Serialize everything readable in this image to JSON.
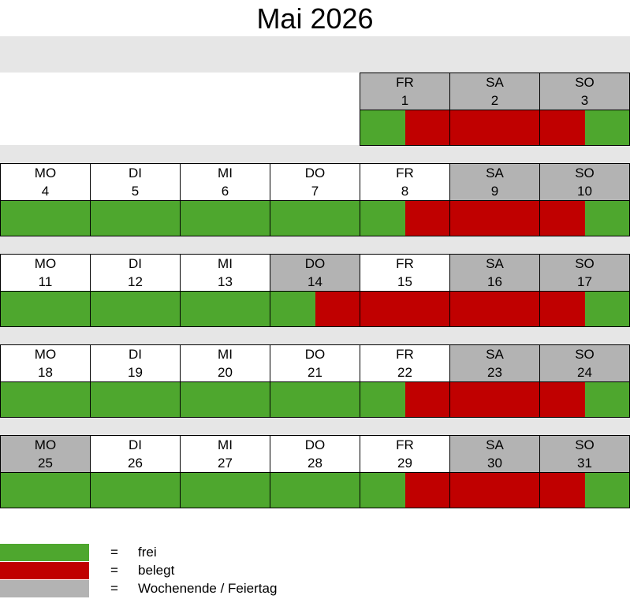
{
  "title": "Mai 2026",
  "colors": {
    "free": "#4ea72e",
    "occupied": "#c00000",
    "weekend": "#b3b3b3",
    "band": "#e6e6e6"
  },
  "weeks": [
    {
      "days": [
        {
          "col": 4,
          "dn": "FR",
          "num": "1",
          "weekend": true,
          "state": "free-occ"
        },
        {
          "col": 5,
          "dn": "SA",
          "num": "2",
          "weekend": true,
          "state": "occ"
        },
        {
          "col": 6,
          "dn": "SO",
          "num": "3",
          "weekend": true,
          "state": "occ-free"
        }
      ]
    },
    {
      "days": [
        {
          "col": 0,
          "dn": "MO",
          "num": "4",
          "weekend": false,
          "state": "free"
        },
        {
          "col": 1,
          "dn": "DI",
          "num": "5",
          "weekend": false,
          "state": "free"
        },
        {
          "col": 2,
          "dn": "MI",
          "num": "6",
          "weekend": false,
          "state": "free"
        },
        {
          "col": 3,
          "dn": "DO",
          "num": "7",
          "weekend": false,
          "state": "free"
        },
        {
          "col": 4,
          "dn": "FR",
          "num": "8",
          "weekend": false,
          "state": "free-occ"
        },
        {
          "col": 5,
          "dn": "SA",
          "num": "9",
          "weekend": true,
          "state": "occ"
        },
        {
          "col": 6,
          "dn": "SO",
          "num": "10",
          "weekend": true,
          "state": "occ-free"
        }
      ]
    },
    {
      "days": [
        {
          "col": 0,
          "dn": "MO",
          "num": "11",
          "weekend": false,
          "state": "free"
        },
        {
          "col": 1,
          "dn": "DI",
          "num": "12",
          "weekend": false,
          "state": "free"
        },
        {
          "col": 2,
          "dn": "MI",
          "num": "13",
          "weekend": false,
          "state": "free"
        },
        {
          "col": 3,
          "dn": "DO",
          "num": "14",
          "weekend": true,
          "state": "free-occ"
        },
        {
          "col": 4,
          "dn": "FR",
          "num": "15",
          "weekend": false,
          "state": "occ"
        },
        {
          "col": 5,
          "dn": "SA",
          "num": "16",
          "weekend": true,
          "state": "occ"
        },
        {
          "col": 6,
          "dn": "SO",
          "num": "17",
          "weekend": true,
          "state": "occ-free"
        }
      ]
    },
    {
      "days": [
        {
          "col": 0,
          "dn": "MO",
          "num": "18",
          "weekend": false,
          "state": "free"
        },
        {
          "col": 1,
          "dn": "DI",
          "num": "19",
          "weekend": false,
          "state": "free"
        },
        {
          "col": 2,
          "dn": "MI",
          "num": "20",
          "weekend": false,
          "state": "free"
        },
        {
          "col": 3,
          "dn": "DO",
          "num": "21",
          "weekend": false,
          "state": "free"
        },
        {
          "col": 4,
          "dn": "FR",
          "num": "22",
          "weekend": false,
          "state": "free-occ"
        },
        {
          "col": 5,
          "dn": "SA",
          "num": "23",
          "weekend": true,
          "state": "occ"
        },
        {
          "col": 6,
          "dn": "SO",
          "num": "24",
          "weekend": true,
          "state": "occ-free"
        }
      ]
    },
    {
      "days": [
        {
          "col": 0,
          "dn": "MO",
          "num": "25",
          "weekend": true,
          "state": "free"
        },
        {
          "col": 1,
          "dn": "DI",
          "num": "26",
          "weekend": false,
          "state": "free"
        },
        {
          "col": 2,
          "dn": "MI",
          "num": "27",
          "weekend": false,
          "state": "free"
        },
        {
          "col": 3,
          "dn": "DO",
          "num": "28",
          "weekend": false,
          "state": "free"
        },
        {
          "col": 4,
          "dn": "FR",
          "num": "29",
          "weekend": false,
          "state": "free-occ"
        },
        {
          "col": 5,
          "dn": "SA",
          "num": "30",
          "weekend": true,
          "state": "occ"
        },
        {
          "col": 6,
          "dn": "SO",
          "num": "31",
          "weekend": true,
          "state": "occ-free"
        }
      ]
    }
  ],
  "legend": [
    {
      "key": "free",
      "eq": "=",
      "label": "frei"
    },
    {
      "key": "occupied",
      "eq": "=",
      "label": "belegt"
    },
    {
      "key": "weekend",
      "eq": "=",
      "label": "Wochenende / Feiertag"
    }
  ]
}
